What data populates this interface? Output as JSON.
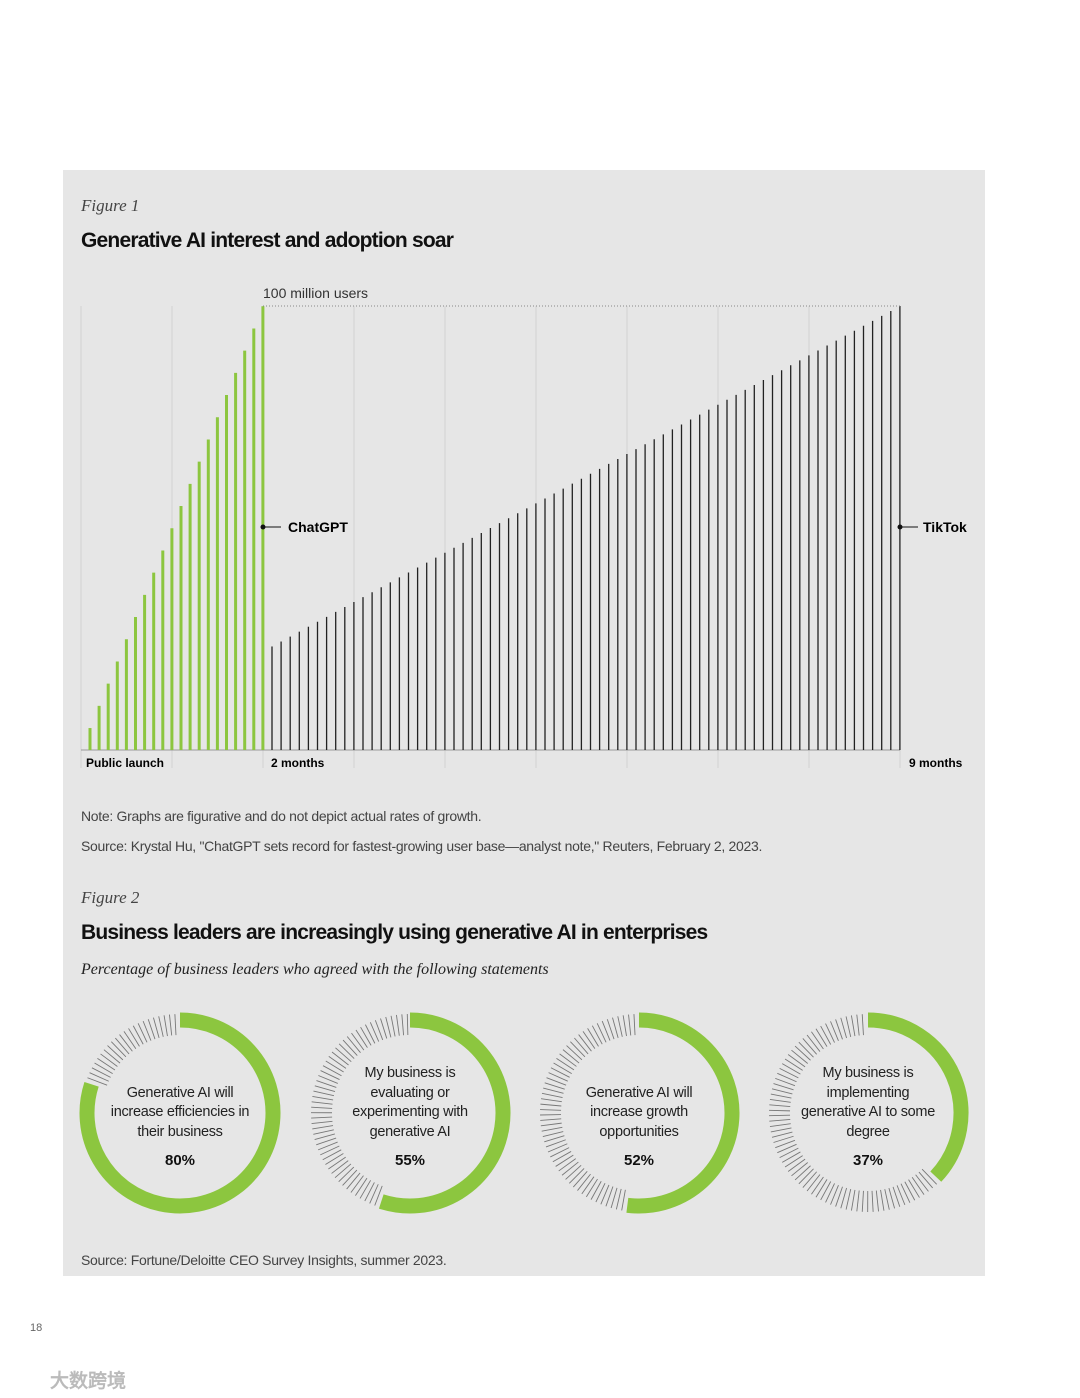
{
  "figure1": {
    "label": "Figure 1",
    "title": "Generative AI interest and adoption soar",
    "top_label": "100 million users",
    "series_labels": [
      "ChatGPT",
      "TikTok"
    ],
    "axis_labels": [
      "Public launch",
      "2 months",
      "9 months"
    ],
    "note": "Note: Graphs are figurative and do not depict actual rates of growth.",
    "source": "Source: Krystal Hu, \"ChatGPT sets record for fastest-growing user base—analyst note,\" Reuters, February 2, 2023."
  },
  "figure2": {
    "label": "Figure 2",
    "title": "Business leaders are increasingly using generative AI in enterprises",
    "subtitle": "Percentage of business leaders who agreed with the following statements",
    "source": "Source: Fortune/Deloitte CEO Survey Insights, summer 2023."
  },
  "chart_data": {
    "type": "donut",
    "categories": [
      "Generative AI will increase efficiencies in their business",
      "My business is evaluating or experimenting with generative AI",
      "Generative AI will increase growth opportunities",
      "My business is implementing generative AI to some degree"
    ],
    "values": [
      80,
      55,
      52,
      37
    ],
    "value_labels": [
      "80%",
      "55%",
      "52%",
      "37%"
    ],
    "color": "#8cc63f"
  },
  "page_number": "18",
  "watermark": "大数跨境"
}
